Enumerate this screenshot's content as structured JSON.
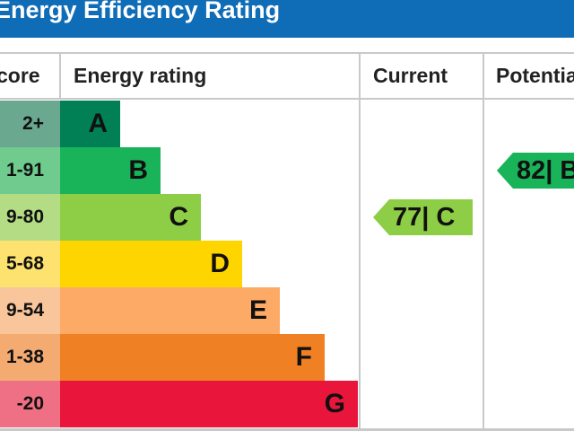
{
  "header": {
    "title": "Energy Efficiency Rating"
  },
  "columns": {
    "score": "core",
    "rating": "Energy rating",
    "current": "Current",
    "potential": "Potentia"
  },
  "chart_data": {
    "type": "bar",
    "title": "Energy Efficiency Rating",
    "bands": [
      {
        "letter": "A",
        "range": "2+",
        "color": "#008054"
      },
      {
        "letter": "B",
        "range": "1-91",
        "color": "#19b459"
      },
      {
        "letter": "C",
        "range": "9-80",
        "color": "#8dce46"
      },
      {
        "letter": "D",
        "range": "5-68",
        "color": "#ffd500"
      },
      {
        "letter": "E",
        "range": "9-54",
        "color": "#fcaa65"
      },
      {
        "letter": "F",
        "range": "1-38",
        "color": "#ef8023"
      },
      {
        "letter": "G",
        "range": "-20",
        "color": "#e9153b"
      }
    ],
    "current": {
      "value": 77,
      "label": "77| C",
      "band": "C",
      "color": "#8dce46"
    },
    "potential": {
      "value": 82,
      "label": "82| B",
      "band": "B",
      "color": "#19b459"
    }
  }
}
